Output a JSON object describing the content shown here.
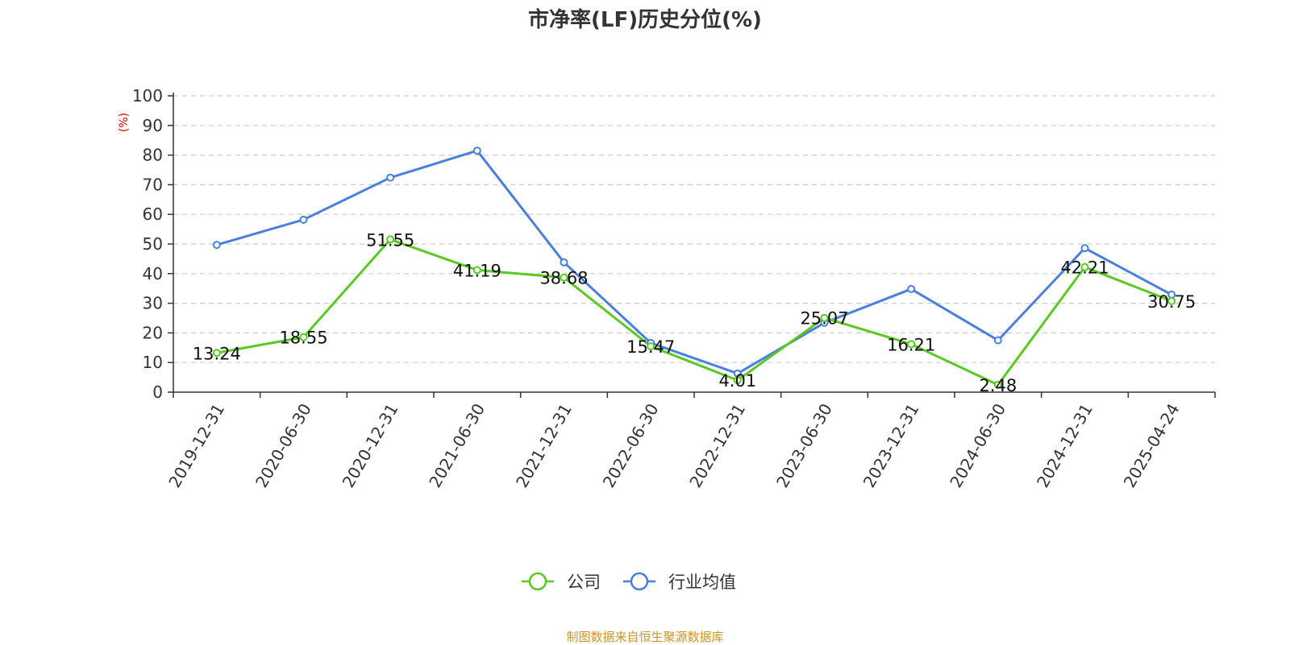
{
  "chart_data": {
    "type": "line",
    "title": "市净率(LF)历史分位(%)",
    "ylabel": "(%)",
    "ylim": [
      0,
      100
    ],
    "yticks": [
      0,
      10,
      20,
      30,
      40,
      50,
      60,
      70,
      80,
      90,
      100
    ],
    "grid": true,
    "legend_position": "bottom",
    "categories": [
      "2019-12-31",
      "2020-06-30",
      "2020-12-31",
      "2021-06-30",
      "2021-12-31",
      "2022-06-30",
      "2022-12-31",
      "2023-06-30",
      "2023-12-31",
      "2024-06-30",
      "2024-12-31",
      "2025-04-24"
    ],
    "series": [
      {
        "name": "公司",
        "color": "#5cc826",
        "values": [
          13.24,
          18.55,
          51.55,
          41.19,
          38.68,
          15.47,
          4.01,
          25.07,
          16.21,
          2.48,
          42.21,
          30.75
        ],
        "labels": [
          "13.24",
          "18.55",
          "51.55",
          "41.19",
          "38.68",
          "15.47",
          "4.01",
          "25.07",
          "16.21",
          "2.48",
          "42.21",
          "30.75"
        ]
      },
      {
        "name": "行业均值",
        "color": "#4a7fde",
        "values": [
          49.7,
          58.2,
          72.4,
          81.5,
          43.8,
          16.6,
          6.3,
          23.4,
          34.8,
          17.5,
          48.6,
          32.9
        ]
      }
    ]
  },
  "footer": "制图数据来自恒生聚源数据库"
}
